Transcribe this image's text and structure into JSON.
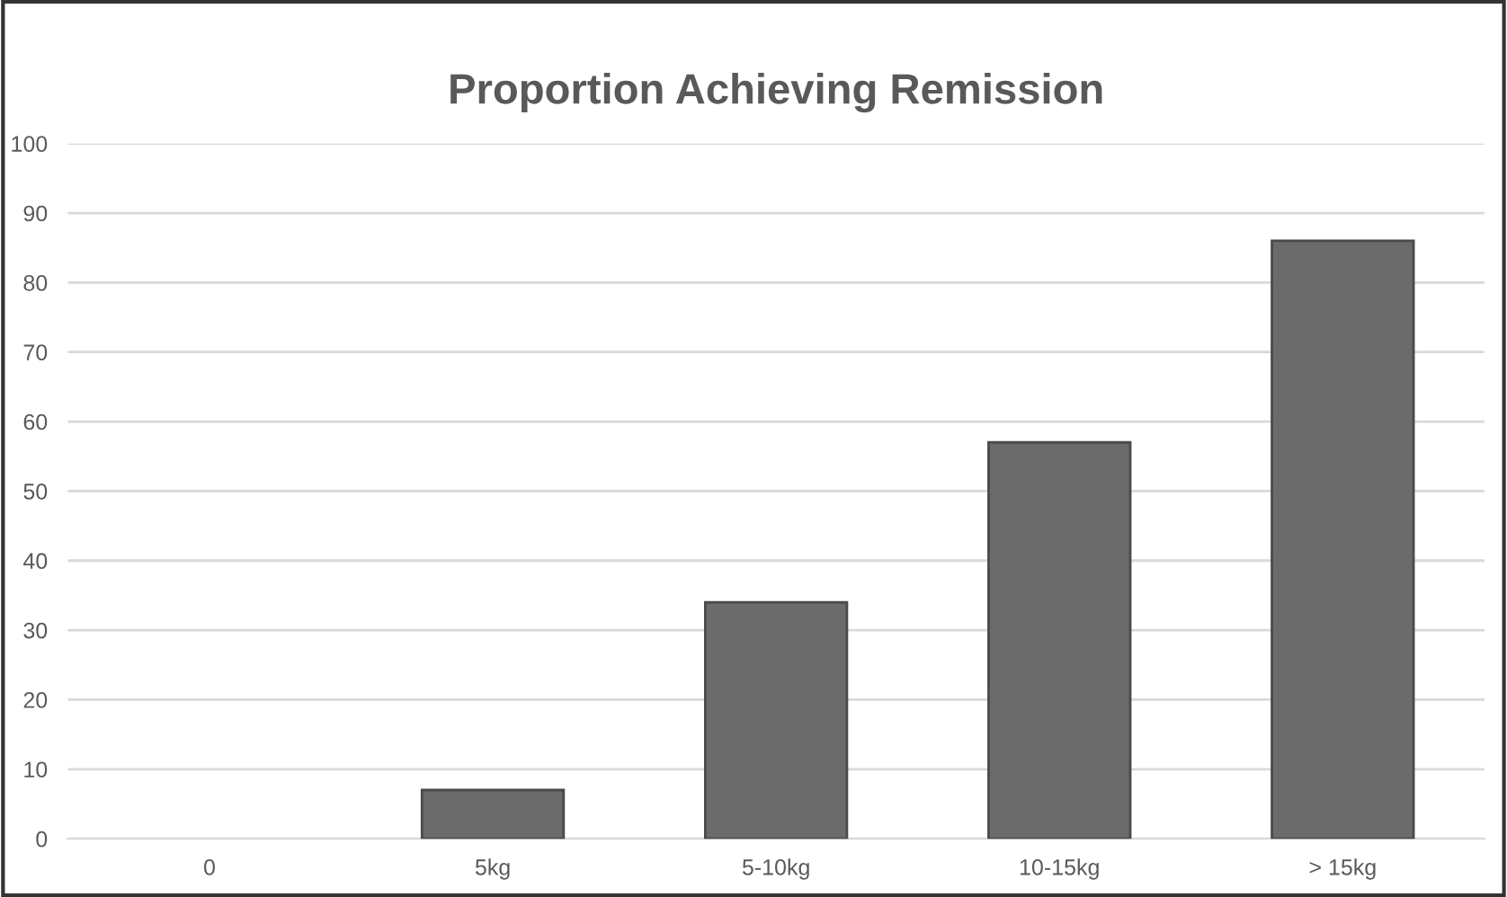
{
  "chart_data": {
    "type": "bar",
    "title": "Proportion Achieving Remission",
    "categories": [
      "0",
      "5kg",
      "5-10kg",
      "10-15kg",
      "> 15kg"
    ],
    "values": [
      0,
      7,
      34,
      57,
      86
    ],
    "color": "#6b6b6b",
    "ylim": [
      0,
      100
    ],
    "yticks": [
      0,
      10,
      20,
      30,
      40,
      50,
      60,
      70,
      80,
      90,
      100
    ],
    "grid": "y"
  }
}
